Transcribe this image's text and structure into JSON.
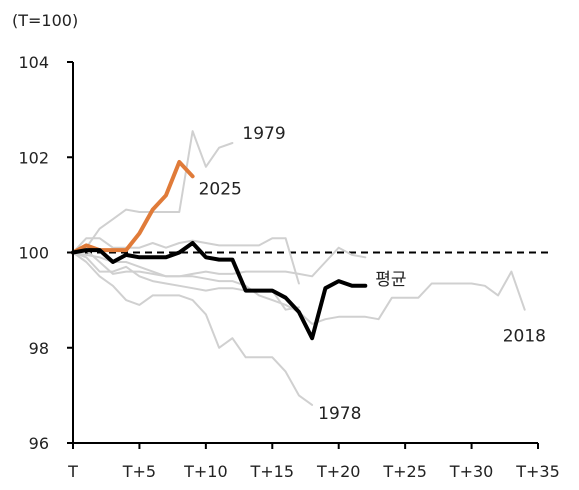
{
  "chart_data": {
    "type": "line",
    "unit_label": "(T=100)",
    "ylim": [
      96,
      104
    ],
    "xlim": [
      0,
      35
    ],
    "y_ticks": [
      96,
      98,
      100,
      102,
      104
    ],
    "x_ticks": [
      {
        "value": 0,
        "label": "T"
      },
      {
        "value": 5,
        "label": "T+5"
      },
      {
        "value": 10,
        "label": "T+10"
      },
      {
        "value": 15,
        "label": "T+15"
      },
      {
        "value": 20,
        "label": "T+20"
      },
      {
        "value": 25,
        "label": "T+25"
      },
      {
        "value": 30,
        "label": "T+30"
      },
      {
        "value": 35,
        "label": "T+35"
      }
    ],
    "reference_line": {
      "y": 100,
      "style": "dashed"
    },
    "colors": {
      "grey_series": "#d0d0d0",
      "series_2025": "#e07b39",
      "average": "#000000",
      "axis": "#000000"
    },
    "series": [
      {
        "name": "2025",
        "label": "2025",
        "color": "#e07b39",
        "emphasis": true,
        "x": [
          0,
          1,
          2,
          3,
          4,
          5,
          6,
          7,
          8,
          9
        ],
        "y": [
          100.0,
          100.15,
          100.05,
          100.05,
          100.05,
          100.4,
          100.9,
          101.2,
          101.9,
          101.6
        ]
      },
      {
        "name": "평균",
        "label": "평균",
        "color": "#000000",
        "emphasis": true,
        "x": [
          0,
          1,
          2,
          3,
          4,
          5,
          6,
          7,
          8,
          9,
          10,
          11,
          12,
          13,
          14,
          15,
          16,
          17,
          18,
          19,
          20,
          21,
          22
        ],
        "y": [
          100.0,
          100.05,
          100.05,
          99.8,
          99.95,
          99.9,
          99.9,
          99.9,
          100.0,
          100.2,
          99.9,
          99.85,
          99.85,
          99.2,
          99.2,
          99.2,
          99.05,
          98.75,
          98.2,
          99.25,
          99.4,
          99.3,
          99.3
        ]
      },
      {
        "name": "1979",
        "label": "1979",
        "color": "#d0d0d0",
        "x": [
          0,
          1,
          2,
          3,
          4,
          5,
          6,
          7,
          8,
          9,
          10,
          11,
          12
        ],
        "y": [
          100.0,
          100.1,
          100.5,
          100.7,
          100.9,
          100.85,
          100.85,
          100.85,
          100.85,
          102.55,
          101.8,
          102.2,
          102.3
        ]
      },
      {
        "name": "1978",
        "label": "1978",
        "color": "#d0d0d0",
        "x": [
          0,
          1,
          2,
          3,
          4,
          5,
          6,
          7,
          8,
          9,
          10,
          11,
          12,
          13,
          14,
          15,
          16,
          17,
          18
        ],
        "y": [
          100.0,
          99.8,
          99.5,
          99.3,
          99.0,
          98.9,
          99.1,
          99.1,
          99.1,
          99.0,
          98.7,
          98.0,
          98.2,
          97.8,
          97.8,
          97.8,
          97.5,
          97.0,
          96.8
        ]
      },
      {
        "name": "2018",
        "label": "2018",
        "color": "#d0d0d0",
        "x": [
          0,
          1,
          2,
          3,
          4,
          5,
          6,
          7,
          8,
          9,
          10,
          11,
          12,
          13,
          14,
          15,
          16,
          17,
          18,
          19,
          20,
          21,
          22,
          23,
          24,
          25,
          26,
          27,
          28,
          29,
          30,
          31,
          32,
          33,
          34
        ],
        "y": [
          100.0,
          99.95,
          99.9,
          99.8,
          99.8,
          99.7,
          99.6,
          99.5,
          99.5,
          99.5,
          99.45,
          99.4,
          99.4,
          99.3,
          99.1,
          99.0,
          98.9,
          98.75,
          98.5,
          98.6,
          98.65,
          98.65,
          98.65,
          98.6,
          99.05,
          99.05,
          99.05,
          99.35,
          99.35,
          99.35,
          99.35,
          99.3,
          99.1,
          99.6,
          98.8
        ]
      },
      {
        "color": "#d0d0d0",
        "x": [
          0,
          1,
          2,
          3,
          4,
          5,
          6,
          7,
          8,
          9,
          10,
          11,
          12,
          13,
          14,
          15,
          16,
          17
        ],
        "y": [
          100.0,
          100.3,
          100.3,
          100.1,
          100.1,
          100.1,
          100.2,
          100.1,
          100.2,
          100.25,
          100.2,
          100.15,
          100.15,
          100.15,
          100.15,
          100.3,
          100.3,
          99.35
        ]
      },
      {
        "color": "#d0d0d0",
        "x": [
          0,
          1,
          2,
          3,
          4,
          5,
          6,
          7,
          8,
          9,
          10,
          11,
          12,
          13,
          14,
          15,
          16,
          17,
          18,
          19,
          20,
          21,
          22
        ],
        "y": [
          100.0,
          100.05,
          99.8,
          99.55,
          99.6,
          99.6,
          99.55,
          99.5,
          99.5,
          99.55,
          99.6,
          99.55,
          99.55,
          99.6,
          99.6,
          99.6,
          99.6,
          99.55,
          99.5,
          99.8,
          100.1,
          99.95,
          99.9
        ]
      },
      {
        "color": "#d0d0d0",
        "x": [
          0,
          1,
          2,
          3,
          4,
          5,
          6,
          7,
          8,
          9,
          10,
          11,
          12,
          13,
          14,
          15,
          16,
          17
        ],
        "y": [
          100.0,
          99.9,
          99.6,
          99.6,
          99.7,
          99.5,
          99.4,
          99.35,
          99.3,
          99.25,
          99.2,
          99.25,
          99.25,
          99.2,
          99.2,
          99.2,
          98.8,
          98.85
        ]
      }
    ]
  }
}
